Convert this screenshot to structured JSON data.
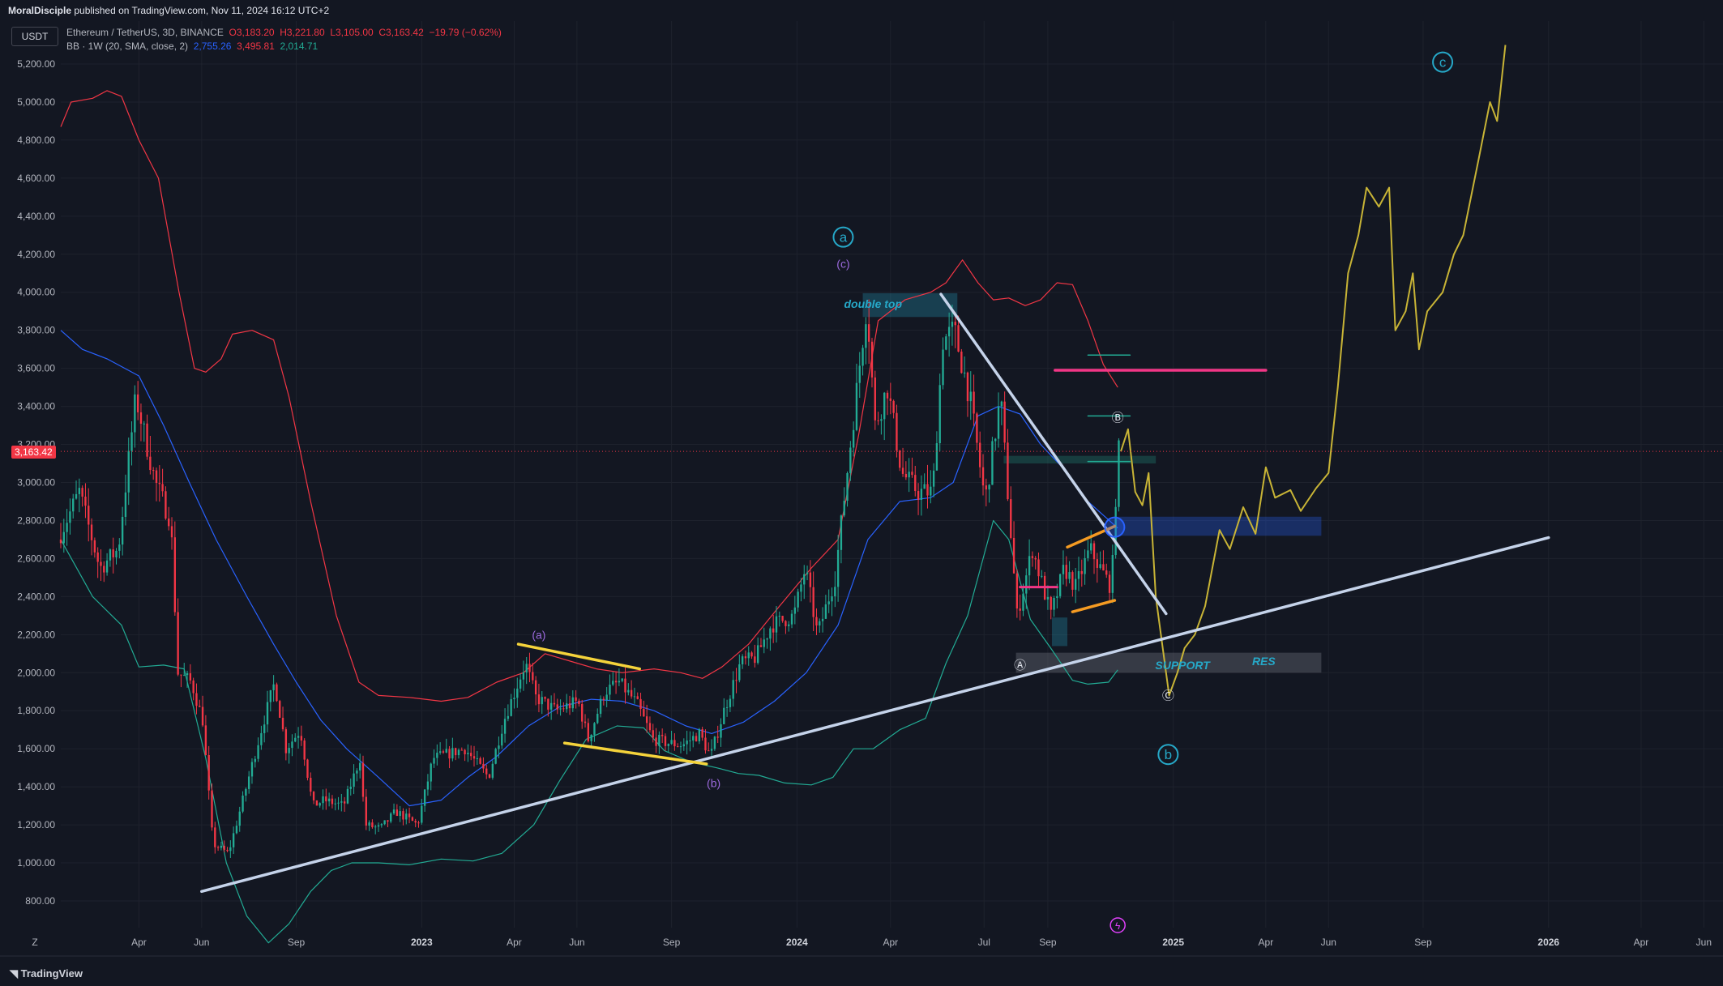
{
  "header": {
    "publisher": "MoralDisciple",
    "published_text": "published on TradingView.com, Nov 11, 2024 16:12 UTC+2"
  },
  "currency_button": "USDT",
  "legend": {
    "symbol": "Ethereum / TetherUS, 3D, BINANCE",
    "open": "O3,183.20",
    "high": "H3,221.80",
    "low": "L3,105.00",
    "close": "C3,163.42",
    "change": "−19.79 (−0.62%)",
    "indicator": "BB · 1W (20, SMA, close, 2)",
    "bb_basis": "2,755.26",
    "bb_upper": "3,495.81",
    "bb_lower": "2,014.71"
  },
  "last_price_tag": "3,163.42",
  "footer": {
    "logo": "TradingView"
  },
  "colors": {
    "background": "#131722",
    "up": "#22ab94",
    "down": "#f23645",
    "bb_upper": "#f23645",
    "bb_basis": "#2962ff",
    "bb_lower": "#22ab94",
    "projection": "#c8b436",
    "trendline": "#c5d3ea",
    "accent": "#26a8c8"
  },
  "chart_data": {
    "type": "candlestick",
    "symbol": "ETHUSDT",
    "interval": "3D",
    "ylim": [
      720,
      5300
    ],
    "yticks": [
      "5,200.00",
      "5,000.00",
      "4,800.00",
      "4,600.00",
      "4,400.00",
      "4,200.00",
      "4,000.00",
      "3,800.00",
      "3,600.00",
      "3,400.00",
      "3,200.00",
      "3,000.00",
      "2,800.00",
      "2,600.00",
      "2,400.00",
      "2,200.00",
      "2,000.00",
      "1,800.00",
      "1,600.00",
      "1,400.00",
      "1,200.00",
      "1,000.00",
      "800.00"
    ],
    "xlim": [
      "2022-01-15",
      "2026-06-01"
    ],
    "xticks": [
      {
        "date": "2022-04-01",
        "label": "Apr",
        "year": false
      },
      {
        "date": "2022-06-01",
        "label": "Jun",
        "year": false
      },
      {
        "date": "2022-09-01",
        "label": "Sep",
        "year": false
      },
      {
        "date": "2023-01-01",
        "label": "2023",
        "year": true
      },
      {
        "date": "2023-04-01",
        "label": "Apr",
        "year": false
      },
      {
        "date": "2023-06-01",
        "label": "Jun",
        "year": false
      },
      {
        "date": "2023-09-01",
        "label": "Sep",
        "year": false
      },
      {
        "date": "2024-01-01",
        "label": "2024",
        "year": true
      },
      {
        "date": "2024-04-01",
        "label": "Apr",
        "year": false
      },
      {
        "date": "2024-07-01",
        "label": "Jul",
        "year": false
      },
      {
        "date": "2024-09-01",
        "label": "Sep",
        "year": false
      },
      {
        "date": "2025-01-01",
        "label": "2025",
        "year": true
      },
      {
        "date": "2025-04-01",
        "label": "Apr",
        "year": false
      },
      {
        "date": "2025-06-01",
        "label": "Jun",
        "year": false
      },
      {
        "date": "2025-09-01",
        "label": "Sep",
        "year": false
      },
      {
        "date": "2026-01-01",
        "label": "2026",
        "year": true
      },
      {
        "date": "2026-04-01",
        "label": "Apr",
        "year": false
      },
      {
        "date": "2026-06-01",
        "label": "Jun",
        "year": false
      }
    ],
    "price_path": [
      [
        "2022-01-15",
        2700
      ],
      [
        "2022-02-05",
        2950
      ],
      [
        "2022-02-25",
        2550
      ],
      [
        "2022-03-15",
        2650
      ],
      [
        "2022-04-01",
        3450
      ],
      [
        "2022-04-20",
        3000
      ],
      [
        "2022-05-05",
        2800
      ],
      [
        "2022-05-12",
        2000
      ],
      [
        "2022-05-25",
        1950
      ],
      [
        "2022-06-05",
        1750
      ],
      [
        "2022-06-15",
        1100
      ],
      [
        "2022-06-30",
        1050
      ],
      [
        "2022-07-15",
        1350
      ],
      [
        "2022-08-01",
        1700
      ],
      [
        "2022-08-14",
        1950
      ],
      [
        "2022-08-25",
        1600
      ],
      [
        "2022-09-08",
        1700
      ],
      [
        "2022-09-20",
        1300
      ],
      [
        "2022-10-01",
        1330
      ],
      [
        "2022-10-20",
        1300
      ],
      [
        "2022-11-05",
        1550
      ],
      [
        "2022-11-10",
        1200
      ],
      [
        "2022-11-25",
        1180
      ],
      [
        "2022-12-10",
        1270
      ],
      [
        "2022-12-31",
        1200
      ],
      [
        "2023-01-15",
        1550
      ],
      [
        "2023-02-15",
        1600
      ],
      [
        "2023-03-10",
        1450
      ],
      [
        "2023-03-25",
        1750
      ],
      [
        "2023-04-15",
        2050
      ],
      [
        "2023-04-25",
        1870
      ],
      [
        "2023-05-15",
        1800
      ],
      [
        "2023-06-05",
        1850
      ],
      [
        "2023-06-15",
        1650
      ],
      [
        "2023-07-01",
        1900
      ],
      [
        "2023-07-15",
        1950
      ],
      [
        "2023-08-01",
        1840
      ],
      [
        "2023-08-17",
        1650
      ],
      [
        "2023-09-01",
        1630
      ],
      [
        "2023-09-15",
        1620
      ],
      [
        "2023-10-01",
        1680
      ],
      [
        "2023-10-12",
        1560
      ],
      [
        "2023-10-25",
        1800
      ],
      [
        "2023-11-10",
        2050
      ],
      [
        "2023-11-25",
        2080
      ],
      [
        "2023-12-10",
        2250
      ],
      [
        "2024-01-01",
        2300
      ],
      [
        "2024-01-12",
        2550
      ],
      [
        "2024-01-24",
        2200
      ],
      [
        "2024-02-10",
        2500
      ],
      [
        "2024-02-25",
        3200
      ],
      [
        "2024-03-12",
        3950
      ],
      [
        "2024-03-20",
        3300
      ],
      [
        "2024-04-01",
        3500
      ],
      [
        "2024-04-15",
        3050
      ],
      [
        "2024-05-01",
        2950
      ],
      [
        "2024-05-15",
        2950
      ],
      [
        "2024-05-25",
        3750
      ],
      [
        "2024-06-05",
        3800
      ],
      [
        "2024-06-20",
        3450
      ],
      [
        "2024-07-05",
        2900
      ],
      [
        "2024-07-20",
        3450
      ],
      [
        "2024-08-05",
        2300
      ],
      [
        "2024-08-20",
        2650
      ],
      [
        "2024-09-07",
        2300
      ],
      [
        "2024-09-20",
        2550
      ],
      [
        "2024-10-01",
        2450
      ],
      [
        "2024-10-15",
        2650
      ],
      [
        "2024-10-30",
        2500
      ],
      [
        "2024-11-05",
        2450
      ],
      [
        "2024-11-11",
        3163.42
      ]
    ],
    "bollinger": {
      "upper": [
        [
          "2022-01-15",
          4870
        ],
        [
          "2022-01-25",
          5000
        ],
        [
          "2022-02-15",
          5020
        ],
        [
          "2022-03-01",
          5060
        ],
        [
          "2022-03-15",
          5030
        ],
        [
          "2022-04-01",
          4800
        ],
        [
          "2022-04-20",
          4600
        ],
        [
          "2022-05-10",
          4000
        ],
        [
          "2022-05-25",
          3600
        ],
        [
          "2022-06-05",
          3580
        ],
        [
          "2022-06-20",
          3650
        ],
        [
          "2022-07-01",
          3780
        ],
        [
          "2022-07-20",
          3800
        ],
        [
          "2022-08-10",
          3750
        ],
        [
          "2022-08-25",
          3450
        ],
        [
          "2022-09-15",
          2900
        ],
        [
          "2022-10-10",
          2300
        ],
        [
          "2022-11-01",
          1950
        ],
        [
          "2022-11-20",
          1880
        ],
        [
          "2022-12-20",
          1870
        ],
        [
          "2023-01-20",
          1850
        ],
        [
          "2023-02-15",
          1870
        ],
        [
          "2023-03-15",
          1950
        ],
        [
          "2023-04-10",
          2000
        ],
        [
          "2023-05-01",
          2100
        ],
        [
          "2023-06-01",
          2050
        ],
        [
          "2023-06-20",
          2020
        ],
        [
          "2023-07-15",
          2000
        ],
        [
          "2023-08-15",
          2020
        ],
        [
          "2023-09-10",
          2000
        ],
        [
          "2023-10-01",
          1970
        ],
        [
          "2023-10-20",
          2030
        ],
        [
          "2023-11-15",
          2150
        ],
        [
          "2023-12-15",
          2350
        ],
        [
          "2024-01-15",
          2550
        ],
        [
          "2024-02-10",
          2700
        ],
        [
          "2024-03-01",
          3250
        ],
        [
          "2024-03-20",
          3850
        ],
        [
          "2024-04-15",
          3960
        ],
        [
          "2024-05-10",
          4000
        ],
        [
          "2024-05-25",
          4050
        ],
        [
          "2024-06-10",
          4170
        ],
        [
          "2024-06-25",
          4050
        ],
        [
          "2024-07-10",
          3960
        ],
        [
          "2024-07-25",
          3970
        ],
        [
          "2024-08-10",
          3930
        ],
        [
          "2024-08-25",
          3960
        ],
        [
          "2024-09-10",
          4050
        ],
        [
          "2024-09-25",
          4040
        ],
        [
          "2024-10-10",
          3850
        ],
        [
          "2024-10-25",
          3620
        ],
        [
          "2024-11-08",
          3500
        ]
      ],
      "basis": [
        [
          "2022-01-15",
          3800
        ],
        [
          "2022-02-05",
          3700
        ],
        [
          "2022-03-01",
          3650
        ],
        [
          "2022-04-01",
          3560
        ],
        [
          "2022-04-25",
          3300
        ],
        [
          "2022-05-20",
          3000
        ],
        [
          "2022-06-15",
          2700
        ],
        [
          "2022-07-15",
          2400
        ],
        [
          "2022-08-10",
          2150
        ],
        [
          "2022-09-01",
          1950
        ],
        [
          "2022-09-25",
          1750
        ],
        [
          "2022-10-20",
          1600
        ],
        [
          "2022-11-20",
          1450
        ],
        [
          "2022-12-20",
          1300
        ],
        [
          "2023-01-20",
          1330
        ],
        [
          "2023-02-15",
          1450
        ],
        [
          "2023-03-15",
          1560
        ],
        [
          "2023-04-15",
          1720
        ],
        [
          "2023-05-15",
          1820
        ],
        [
          "2023-06-15",
          1860
        ],
        [
          "2023-07-15",
          1850
        ],
        [
          "2023-08-15",
          1800
        ],
        [
          "2023-09-15",
          1720
        ],
        [
          "2023-10-10",
          1680
        ],
        [
          "2023-11-10",
          1740
        ],
        [
          "2023-12-10",
          1850
        ],
        [
          "2024-01-10",
          2000
        ],
        [
          "2024-02-10",
          2250
        ],
        [
          "2024-03-10",
          2700
        ],
        [
          "2024-04-10",
          2900
        ],
        [
          "2024-05-10",
          2920
        ],
        [
          "2024-06-01",
          3000
        ],
        [
          "2024-06-25",
          3350
        ],
        [
          "2024-07-15",
          3400
        ],
        [
          "2024-08-05",
          3360
        ],
        [
          "2024-08-25",
          3200
        ],
        [
          "2024-09-15",
          3080
        ],
        [
          "2024-10-10",
          2900
        ],
        [
          "2024-11-08",
          2760
        ]
      ],
      "lower": [
        [
          "2022-01-15",
          2700
        ],
        [
          "2022-02-15",
          2400
        ],
        [
          "2022-03-15",
          2250
        ],
        [
          "2022-04-01",
          2030
        ],
        [
          "2022-04-25",
          2040
        ],
        [
          "2022-05-15",
          2020
        ],
        [
          "2022-06-05",
          1550
        ],
        [
          "2022-06-25",
          1000
        ],
        [
          "2022-07-15",
          720
        ],
        [
          "2022-08-05",
          580
        ],
        [
          "2022-08-25",
          680
        ],
        [
          "2022-09-15",
          850
        ],
        [
          "2022-10-05",
          960
        ],
        [
          "2022-10-25",
          1000
        ],
        [
          "2022-11-20",
          1000
        ],
        [
          "2022-12-20",
          990
        ],
        [
          "2023-01-20",
          1020
        ],
        [
          "2023-02-20",
          1010
        ],
        [
          "2023-03-20",
          1050
        ],
        [
          "2023-04-20",
          1200
        ],
        [
          "2023-05-15",
          1430
        ],
        [
          "2023-06-10",
          1650
        ],
        [
          "2023-07-10",
          1720
        ],
        [
          "2023-08-05",
          1710
        ],
        [
          "2023-08-25",
          1590
        ],
        [
          "2023-09-20",
          1530
        ],
        [
          "2023-10-15",
          1500
        ],
        [
          "2023-11-05",
          1470
        ],
        [
          "2023-11-25",
          1460
        ],
        [
          "2023-12-20",
          1420
        ],
        [
          "2024-01-15",
          1410
        ],
        [
          "2024-02-05",
          1450
        ],
        [
          "2024-02-25",
          1600
        ],
        [
          "2024-03-15",
          1600
        ],
        [
          "2024-04-10",
          1700
        ],
        [
          "2024-05-05",
          1760
        ],
        [
          "2024-05-25",
          2050
        ],
        [
          "2024-06-15",
          2300
        ],
        [
          "2024-07-10",
          2800
        ],
        [
          "2024-07-25",
          2700
        ],
        [
          "2024-08-15",
          2280
        ],
        [
          "2024-09-05",
          2120
        ],
        [
          "2024-09-25",
          1960
        ],
        [
          "2024-10-10",
          1940
        ],
        [
          "2024-10-30",
          1950
        ],
        [
          "2024-11-08",
          2015
        ]
      ]
    },
    "projection": [
      [
        "2024-11-11",
        3163
      ],
      [
        "2024-11-18",
        3280
      ],
      [
        "2024-11-25",
        2950
      ],
      [
        "2024-12-02",
        2880
      ],
      [
        "2024-12-08",
        3050
      ],
      [
        "2024-12-15",
        2400
      ],
      [
        "2024-12-28",
        1880
      ],
      [
        "2025-01-05",
        2000
      ],
      [
        "2025-01-12",
        2130
      ],
      [
        "2025-01-22",
        2200
      ],
      [
        "2025-02-01",
        2350
      ],
      [
        "2025-02-15",
        2750
      ],
      [
        "2025-02-25",
        2650
      ],
      [
        "2025-03-10",
        2870
      ],
      [
        "2025-03-22",
        2730
      ],
      [
        "2025-04-01",
        3080
      ],
      [
        "2025-04-10",
        2920
      ],
      [
        "2025-04-25",
        2960
      ],
      [
        "2025-05-05",
        2850
      ],
      [
        "2025-05-20",
        2970
      ],
      [
        "2025-06-01",
        3050
      ],
      [
        "2025-06-10",
        3500
      ],
      [
        "2025-06-20",
        4100
      ],
      [
        "2025-06-30",
        4300
      ],
      [
        "2025-07-08",
        4550
      ],
      [
        "2025-07-20",
        4450
      ],
      [
        "2025-07-30",
        4550
      ],
      [
        "2025-08-05",
        3800
      ],
      [
        "2025-08-15",
        3900
      ],
      [
        "2025-08-22",
        4100
      ],
      [
        "2025-08-28",
        3700
      ],
      [
        "2025-09-05",
        3900
      ],
      [
        "2025-09-20",
        4000
      ],
      [
        "2025-10-01",
        4200
      ],
      [
        "2025-10-10",
        4300
      ],
      [
        "2025-10-25",
        4700
      ],
      [
        "2025-11-05",
        5000
      ],
      [
        "2025-11-12",
        4900
      ],
      [
        "2025-11-20",
        5300
      ]
    ],
    "trendlines": [
      {
        "name": "support-trendline",
        "from": [
          "2022-06-01",
          850
        ],
        "to": [
          "2026-01-01",
          2710
        ],
        "color": "#c5d3ea"
      },
      {
        "name": "descending-trendline",
        "from": [
          "2024-05-20",
          3990
        ],
        "to": [
          "2024-12-25",
          2310
        ],
        "color": "#c5d3ea"
      }
    ],
    "annotations": [
      {
        "type": "circle-label",
        "text": "a",
        "at": [
          "2024-02-15",
          4290
        ],
        "color": "#26a8c8"
      },
      {
        "type": "circle-label",
        "text": "b",
        "at": [
          "2024-12-27",
          1570
        ],
        "color": "#26a8c8"
      },
      {
        "type": "circle-label",
        "text": "c",
        "at": [
          "2025-09-20",
          5210
        ],
        "color": "#26a8c8"
      },
      {
        "type": "circle-small",
        "text": "Ⓐ",
        "at": [
          "2024-08-05",
          2040
        ],
        "color": "#e0e3eb"
      },
      {
        "type": "circle-small",
        "text": "Ⓑ",
        "at": [
          "2024-11-08",
          3340
        ],
        "color": "#e0e3eb"
      },
      {
        "type": "circle-small",
        "text": "Ⓒ",
        "at": [
          "2024-12-27",
          1880
        ],
        "color": "#e0e3eb"
      },
      {
        "type": "text",
        "text": "(a)",
        "at": [
          "2023-04-25",
          2200
        ],
        "color": "#9c6ade"
      },
      {
        "type": "text",
        "text": "(b)",
        "at": [
          "2023-10-12",
          1420
        ],
        "color": "#9c6ade"
      },
      {
        "type": "text",
        "text": "(c)",
        "at": [
          "2024-02-15",
          4150
        ],
        "color": "#9c6ade"
      },
      {
        "type": "box-label",
        "text": "double top",
        "at": [
          "2024-03-15",
          3940
        ],
        "color": "#26a8c8"
      },
      {
        "type": "text",
        "text": "SUPPORT",
        "at": [
          "2025-01-10",
          2040
        ],
        "color": "#26a8c8"
      },
      {
        "type": "text",
        "text": "RES",
        "at": [
          "2025-03-30",
          2060
        ],
        "color": "#26a8c8"
      }
    ]
  }
}
